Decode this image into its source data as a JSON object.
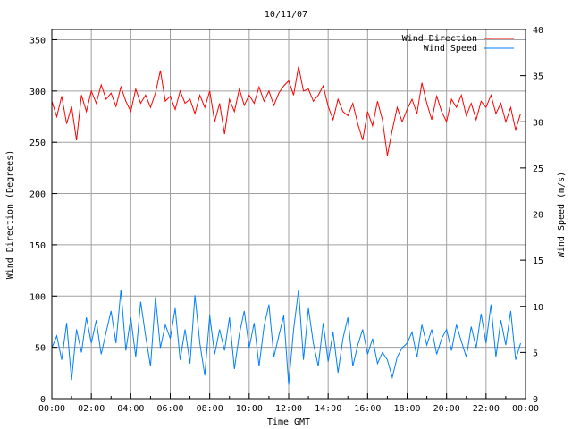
{
  "chart_data": {
    "type": "line",
    "title": "10/11/07",
    "xlabel": "Time GMT",
    "ylabel": "Wind Direction (Degrees)",
    "y2label": "Wind Speed (m/s)",
    "xlim": [
      0,
      24
    ],
    "ylim": [
      0,
      360
    ],
    "y2lim": [
      0,
      40
    ],
    "x_ticks": [
      "00:00",
      "02:00",
      "04:00",
      "06:00",
      "08:00",
      "10:00",
      "12:00",
      "14:00",
      "16:00",
      "18:00",
      "20:00",
      "22:00",
      "00:00"
    ],
    "y_ticks": [
      "0",
      "50",
      "100",
      "150",
      "200",
      "250",
      "300",
      "350"
    ],
    "y2_ticks": [
      "0",
      "5",
      "10",
      "15",
      "20",
      "25",
      "30",
      "35",
      "40"
    ],
    "grid": true,
    "legend_position": "top-right",
    "x_step_hours": 0.25,
    "series": [
      {
        "name": "Wind Direction",
        "axis": "left",
        "color": "#ff0000",
        "values": [
          290,
          275,
          295,
          268,
          285,
          252,
          296,
          280,
          300,
          288,
          306,
          292,
          298,
          285,
          304,
          290,
          280,
          302,
          288,
          296,
          284,
          298,
          320,
          290,
          295,
          282,
          300,
          288,
          292,
          278,
          296,
          284,
          300,
          270,
          288,
          258,
          292,
          280,
          302,
          286,
          296,
          288,
          304,
          290,
          300,
          286,
          298,
          305,
          310,
          296,
          324,
          300,
          302,
          290,
          296,
          305,
          285,
          272,
          292,
          280,
          276,
          288,
          268,
          252,
          280,
          266,
          290,
          272,
          237,
          262,
          284,
          270,
          282,
          292,
          278,
          308,
          288,
          272,
          295,
          280,
          270,
          292,
          284,
          296,
          276,
          288,
          272,
          290,
          284,
          296,
          278,
          288,
          270,
          284,
          262,
          278
        ]
      },
      {
        "name": "Wind Speed",
        "axis": "right",
        "color": "#0080ff",
        "values": [
          5.5,
          6.8,
          4.2,
          8.2,
          2.0,
          7.5,
          5.0,
          8.8,
          6.0,
          8.5,
          4.8,
          7.2,
          9.5,
          6.0,
          11.8,
          5.2,
          8.8,
          4.5,
          10.5,
          6.8,
          3.5,
          11.0,
          5.5,
          8.0,
          6.5,
          9.8,
          4.2,
          7.5,
          3.8,
          11.2,
          6.0,
          2.5,
          9.0,
          4.8,
          7.5,
          5.2,
          8.8,
          3.2,
          7.0,
          9.5,
          5.5,
          8.2,
          3.5,
          7.8,
          10.2,
          4.5,
          6.8,
          9.0,
          1.5,
          7.5,
          11.8,
          4.2,
          9.8,
          6.0,
          3.5,
          8.2,
          4.0,
          7.2,
          2.8,
          6.5,
          8.8,
          3.5,
          5.8,
          7.5,
          4.8,
          6.5,
          3.8,
          5.0,
          4.2,
          2.3,
          4.5,
          5.5,
          6.0,
          7.2,
          4.5,
          8.0,
          5.8,
          7.5,
          4.8,
          6.5,
          7.5,
          5.2,
          8.0,
          6.2,
          4.5,
          7.8,
          5.5,
          9.2,
          6.0,
          10.2,
          4.5,
          8.5,
          5.8,
          9.5,
          4.2,
          6.0
        ]
      }
    ]
  }
}
